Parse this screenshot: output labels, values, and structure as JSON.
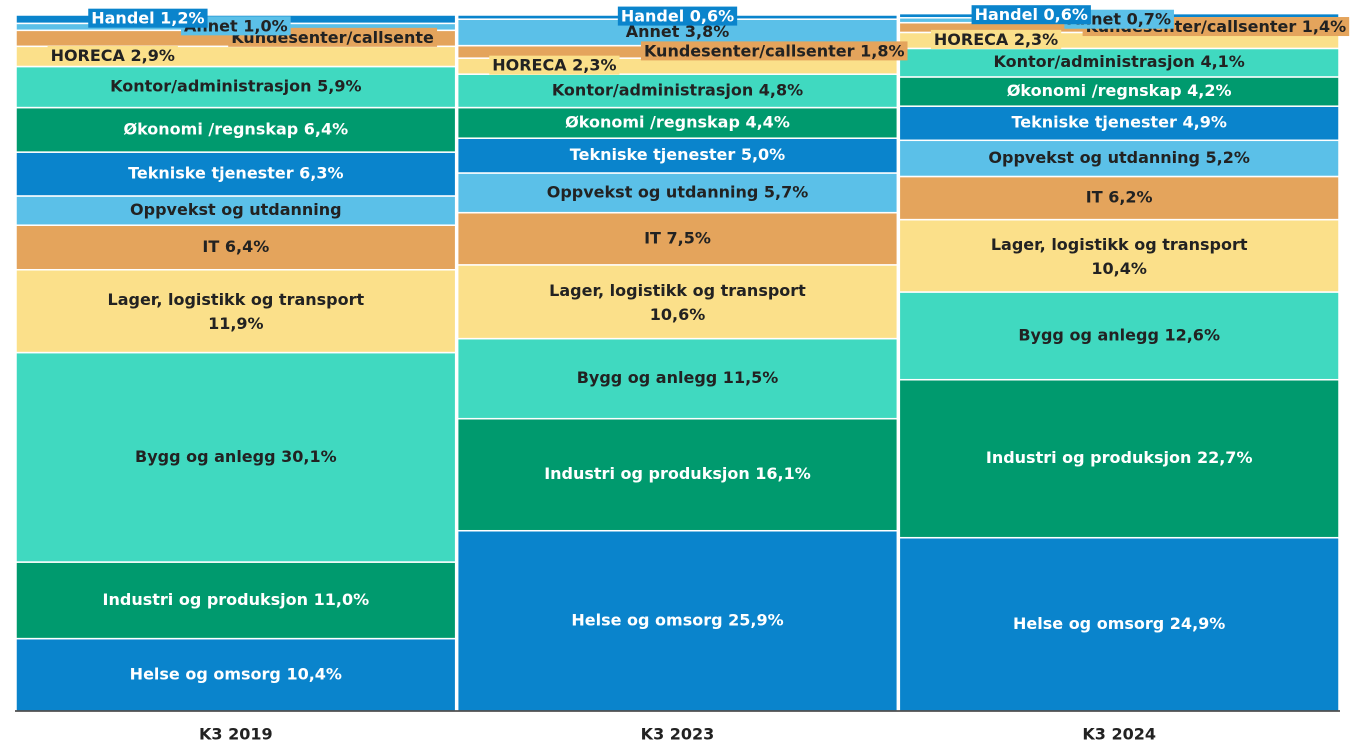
{
  "chart_data": {
    "type": "stacked_bar_100",
    "categories": [
      "K3 2019",
      "K3 2023",
      "K3 2024"
    ],
    "ylim": [
      0,
      100
    ],
    "series": [
      {
        "name": "Helse og omsorg",
        "color": "#0a84cc",
        "values": [
          10.4,
          25.9,
          24.9
        ],
        "value_labels": [
          "Helse og omsorg 10,4%",
          "Helse og omsorg 25,9%",
          "Helse og omsorg 24,9%"
        ]
      },
      {
        "name": "Industri og produksjon",
        "color": "#009a6e",
        "values": [
          11.0,
          16.1,
          22.7
        ],
        "value_labels": [
          "Industri og produksjon 11,0%",
          "Industri og produksjon 16,1%",
          "Industri og produksjon 22,7%"
        ]
      },
      {
        "name": "Bygg og anlegg",
        "color": "#40d9c0",
        "values": [
          30.1,
          11.5,
          12.6
        ],
        "value_labels": [
          "Bygg og anlegg 30,1%",
          "Bygg og anlegg 11,5%",
          "Bygg og anlegg 12,6%"
        ]
      },
      {
        "name": "Lager, logistikk og transport",
        "color": "#fbe08a",
        "values": [
          11.9,
          10.6,
          10.4
        ],
        "value_labels": [
          "Lager, logistikk og transport 11,9%",
          "Lager, logistikk og transport 10,6%",
          "Lager, logistikk og transport 10,4%"
        ]
      },
      {
        "name": "IT",
        "color": "#e4a45c",
        "values": [
          6.4,
          7.5,
          6.2
        ],
        "value_labels": [
          "IT 6,4%",
          "IT 7,5%",
          "IT 6,2%"
        ]
      },
      {
        "name": "Oppvekst og utdanning",
        "color": "#5bc0e8",
        "values": [
          4.2,
          5.7,
          5.2
        ],
        "value_labels": [
          "Oppvekst og utdanning",
          "Oppvekst og utdanning 5,7%",
          "Oppvekst og utdanning 5,2%"
        ]
      },
      {
        "name": "Tekniske tjenester",
        "color": "#0a84cc",
        "values": [
          6.3,
          5.0,
          4.9
        ],
        "value_labels": [
          "Tekniske tjenester 6,3%",
          "Tekniske tjenester 5,0%",
          "Tekniske tjenester 4,9%"
        ]
      },
      {
        "name": "Økonomi /regnskap",
        "color": "#009a6e",
        "values": [
          6.4,
          4.4,
          4.2
        ],
        "value_labels": [
          "Økonomi /regnskap 6,4%",
          "Økonomi /regnskap 4,4%",
          "Økonomi /regnskap 4,2%"
        ]
      },
      {
        "name": "Kontor/administrasjon",
        "color": "#40d9c0",
        "values": [
          5.9,
          4.8,
          4.1
        ],
        "value_labels": [
          "Kontor/administrasjon 5,9%",
          "Kontor/administrasjon 4,8%",
          "Kontor/administrasjon 4,1%"
        ]
      },
      {
        "name": "HORECA",
        "color": "#fbe08a",
        "values": [
          2.9,
          2.3,
          2.3
        ],
        "value_labels": [
          "HORECA 2,9%",
          "HORECA 2,3%",
          "HORECA 2,3%"
        ]
      },
      {
        "name": "Kundesenter/callsenter",
        "color": "#e4a45c",
        "values": [
          2.3,
          1.8,
          1.4
        ],
        "value_labels": [
          "Kundesenter/callsente",
          "Kundesenter/callsenter 1,8%",
          "Kundesenter/callsenter 1,4%"
        ]
      },
      {
        "name": "Annet",
        "color": "#5bc0e8",
        "values": [
          1.0,
          3.8,
          0.7
        ],
        "value_labels": [
          "Annet 1,0%",
          "Annet 3,8%",
          "Annet 0,7%"
        ]
      },
      {
        "name": "Handel",
        "color": "#0a84cc",
        "values": [
          1.2,
          0.6,
          0.6
        ],
        "value_labels": [
          "Handel 1,2%",
          "Handel 0,6%",
          "Handel 0,6%"
        ]
      }
    ]
  }
}
